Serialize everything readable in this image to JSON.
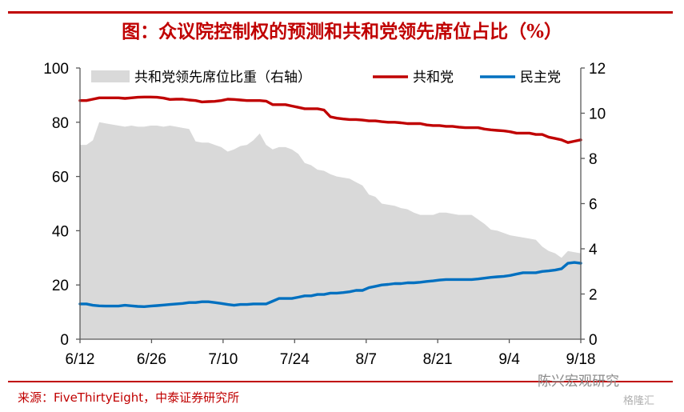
{
  "header": {
    "title": "图：众议院控制权的预测和共和党领先席位占比（%）"
  },
  "footer": {
    "source": "来源：FiveThirtyEight，中泰证券研究所",
    "watermark": "陈兴宏观研究",
    "watermark_logo": "格隆汇"
  },
  "colors": {
    "accent": "#c00000",
    "gop": "#c00000",
    "dem": "#0070c0",
    "area": "#d9d9d9"
  },
  "chart_data": {
    "type": "line",
    "title": "图：众议院控制权的预测和共和党领先席位占比（%）",
    "x_tick_labels": [
      "6/12",
      "6/26",
      "7/10",
      "7/24",
      "8/7",
      "8/21",
      "9/4",
      "9/18"
    ],
    "y_left_range": [
      0,
      100
    ],
    "y_left_ticks": [
      "0",
      "20",
      "40",
      "60",
      "80",
      "100"
    ],
    "y_right_range": [
      0,
      12
    ],
    "y_right_ticks": [
      "0",
      "2",
      "4",
      "6",
      "8",
      "10",
      "12"
    ],
    "grid": false,
    "legend_position": "top",
    "series": [
      {
        "name": "共和党领先席位比重（右轴）",
        "kind": "area",
        "axis": "right",
        "color": "#d9d9d9",
        "values": [
          8.6,
          8.6,
          8.8,
          9.6,
          9.55,
          9.5,
          9.45,
          9.4,
          9.45,
          9.4,
          9.4,
          9.45,
          9.45,
          9.4,
          9.45,
          9.4,
          9.35,
          9.3,
          8.75,
          8.7,
          8.7,
          8.6,
          8.5,
          8.3,
          8.4,
          8.55,
          8.6,
          8.8,
          9.1,
          8.6,
          8.4,
          8.5,
          8.5,
          8.4,
          8.2,
          7.8,
          7.7,
          7.5,
          7.45,
          7.3,
          7.2,
          7.15,
          7.1,
          6.95,
          6.8,
          6.4,
          6.3,
          6.0,
          5.95,
          5.9,
          5.8,
          5.75,
          5.6,
          5.5,
          5.5,
          5.5,
          5.6,
          5.6,
          5.55,
          5.5,
          5.5,
          5.5,
          5.3,
          5.1,
          4.85,
          4.8,
          4.7,
          4.6,
          4.55,
          4.5,
          4.45,
          4.4,
          4.1,
          3.9,
          3.8,
          3.6,
          3.9,
          3.85,
          3.8
        ]
      },
      {
        "name": "共和党",
        "kind": "line",
        "axis": "left",
        "color": "#c00000",
        "values": [
          88,
          88,
          88.5,
          89,
          89,
          89,
          89,
          88.8,
          89,
          89.2,
          89.3,
          89.3,
          89.2,
          88.9,
          88.4,
          88.5,
          88.5,
          88.2,
          88,
          87.5,
          87.6,
          87.7,
          88,
          88.5,
          88.4,
          88.2,
          88,
          88,
          88,
          87.8,
          86.5,
          86.5,
          86.5,
          86,
          85.5,
          85,
          85,
          85,
          84.5,
          82,
          81.5,
          81.2,
          81,
          81,
          80.8,
          80.5,
          80.5,
          80.2,
          80,
          80,
          79.8,
          79.5,
          79.5,
          79.5,
          79,
          78.8,
          78.8,
          78.5,
          78.5,
          78.2,
          78,
          78,
          78,
          77.5,
          77.2,
          77,
          76.8,
          76.5,
          76,
          76,
          76,
          75.5,
          75.5,
          74.5,
          74,
          73.5,
          72.5,
          73,
          73.5
        ]
      },
      {
        "name": "民主党",
        "kind": "line",
        "axis": "left",
        "color": "#0070c0",
        "values": [
          13,
          13,
          12.5,
          12.3,
          12.2,
          12.2,
          12.2,
          12.5,
          12.3,
          12.1,
          12,
          12.2,
          12.4,
          12.6,
          12.8,
          13,
          13.2,
          13.5,
          13.5,
          13.8,
          13.8,
          13.5,
          13.2,
          12.8,
          12.5,
          12.8,
          12.8,
          13,
          13,
          13,
          14,
          15,
          15,
          15,
          15.5,
          16,
          16,
          16.5,
          16.5,
          17,
          17,
          17.2,
          17.5,
          18,
          18,
          19,
          19.5,
          20,
          20.2,
          20.5,
          20.5,
          20.8,
          20.8,
          21,
          21.3,
          21.5,
          21.8,
          22,
          22,
          22,
          22,
          22,
          22.2,
          22.5,
          22.8,
          23,
          23.2,
          23.5,
          24,
          24.5,
          24.5,
          24.5,
          25,
          25.2,
          25.5,
          26,
          28,
          28.3,
          28
        ]
      }
    ]
  }
}
